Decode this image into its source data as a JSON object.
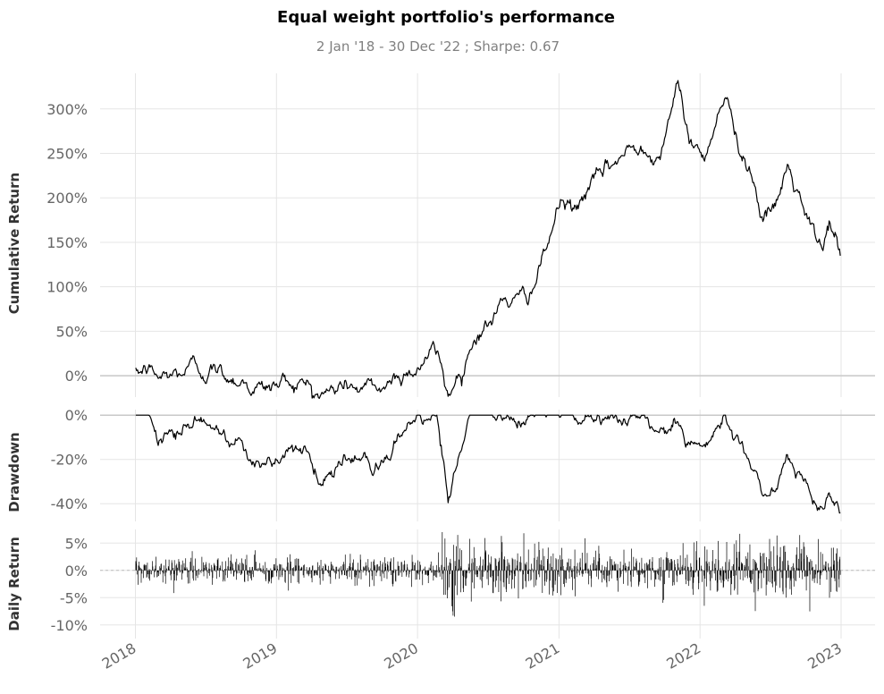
{
  "title": "Equal weight portfolio's performance",
  "subtitle": "2 Jan '18 - 30 Dec '22 ;  Sharpe: 0.67",
  "chart_data": [
    {
      "type": "line",
      "name": "cumulative",
      "ylabel": "Cumulative Return",
      "ylim": [
        -30,
        340
      ],
      "yticks": [
        0,
        50,
        100,
        150,
        200,
        250,
        300
      ],
      "ytick_labels": [
        "0%",
        "50%",
        "100%",
        "150%",
        "200%",
        "250%",
        "300%"
      ],
      "grid": true,
      "x": [
        "2018-01-02",
        "2018-02-01",
        "2018-03-01",
        "2018-04-01",
        "2018-05-01",
        "2018-06-01",
        "2018-07-01",
        "2018-08-01",
        "2018-09-01",
        "2018-10-01",
        "2018-11-01",
        "2018-12-01",
        "2019-01-01",
        "2019-02-01",
        "2019-03-01",
        "2019-04-01",
        "2019-05-01",
        "2019-06-01",
        "2019-07-01",
        "2019-08-01",
        "2019-09-01",
        "2019-10-01",
        "2019-11-01",
        "2019-12-01",
        "2020-01-01",
        "2020-02-01",
        "2020-02-20",
        "2020-03-20",
        "2020-04-15",
        "2020-05-15",
        "2020-06-15",
        "2020-07-15",
        "2020-08-15",
        "2020-09-15",
        "2020-10-15",
        "2020-11-15",
        "2020-12-15",
        "2021-01-05",
        "2021-02-15",
        "2021-03-15",
        "2021-04-15",
        "2021-05-15",
        "2021-06-15",
        "2021-07-15",
        "2021-08-15",
        "2021-09-15",
        "2021-10-15",
        "2021-11-05",
        "2021-11-25",
        "2021-12-20",
        "2022-01-15",
        "2022-02-15",
        "2022-03-10",
        "2022-03-31",
        "2022-04-20",
        "2022-05-15",
        "2022-06-15",
        "2022-07-15",
        "2022-08-15",
        "2022-09-15",
        "2022-10-15",
        "2022-11-15",
        "2022-12-01",
        "2022-12-30"
      ],
      "values": [
        0,
        7,
        -3,
        0,
        4,
        12,
        6,
        5,
        0,
        -3,
        -12,
        -15,
        -10,
        -6,
        -7,
        -12,
        -22,
        -15,
        -8,
        -14,
        -16,
        -14,
        -3,
        5,
        10,
        25,
        25,
        -20,
        0,
        35,
        55,
        62,
        90,
        80,
        95,
        120,
        165,
        195,
        185,
        210,
        220,
        235,
        248,
        255,
        263,
        245,
        300,
        320,
        280,
        255,
        248,
        300,
        315,
        270,
        255,
        230,
        175,
        185,
        235,
        200,
        160,
        140,
        175,
        135
      ]
    },
    {
      "type": "area",
      "name": "drawdown",
      "ylabel": "Drawdown",
      "ylim": [
        -48,
        3
      ],
      "yticks": [
        0,
        -20,
        -40
      ],
      "ytick_labels": [
        "0%",
        "-20%",
        "-40%"
      ],
      "grid": true,
      "x": [
        "2018-01-02",
        "2018-02-01",
        "2018-03-01",
        "2018-04-01",
        "2018-05-01",
        "2018-06-01",
        "2018-07-01",
        "2018-08-01",
        "2018-09-01",
        "2018-10-01",
        "2018-11-01",
        "2018-12-01",
        "2019-01-01",
        "2019-02-01",
        "2019-03-01",
        "2019-04-01",
        "2019-05-01",
        "2019-06-01",
        "2019-07-01",
        "2019-08-01",
        "2019-09-01",
        "2019-10-01",
        "2019-11-01",
        "2019-12-01",
        "2020-01-01",
        "2020-02-01",
        "2020-02-20",
        "2020-03-20",
        "2020-04-15",
        "2020-05-15",
        "2020-06-15",
        "2020-07-15",
        "2020-08-15",
        "2020-09-15",
        "2020-10-15",
        "2020-11-15",
        "2020-12-15",
        "2021-01-05",
        "2021-02-15",
        "2021-03-15",
        "2021-04-15",
        "2021-05-15",
        "2021-06-15",
        "2021-07-15",
        "2021-08-15",
        "2021-09-15",
        "2021-10-15",
        "2021-11-05",
        "2021-11-25",
        "2021-12-20",
        "2022-01-15",
        "2022-02-15",
        "2022-03-10",
        "2022-03-31",
        "2022-04-20",
        "2022-05-15",
        "2022-06-15",
        "2022-07-15",
        "2022-08-15",
        "2022-09-15",
        "2022-10-15",
        "2022-11-15",
        "2022-12-01",
        "2022-12-30"
      ],
      "values": [
        0,
        0,
        -12,
        -9,
        -7,
        0,
        -6,
        -7,
        -10,
        -13,
        -21,
        -24,
        -20,
        -16,
        -17,
        -21,
        -31,
        -24,
        -18,
        -23,
        -25,
        -23,
        -14,
        -7,
        -3,
        0,
        0,
        -41,
        -25,
        0,
        0,
        0,
        0,
        -4,
        0,
        0,
        0,
        0,
        -4,
        0,
        0,
        0,
        0,
        0,
        0,
        -5,
        0,
        0,
        -10,
        -18,
        -20,
        -7,
        0,
        -11,
        -15,
        -22,
        -35,
        -32,
        -20,
        -28,
        -37,
        -42,
        -35,
        -44
      ]
    },
    {
      "type": "bar",
      "name": "daily",
      "ylabel": "Daily Return",
      "ylim": [
        -12.5,
        7.5
      ],
      "yticks": [
        5,
        0,
        -5,
        -10
      ],
      "ytick_labels": [
        "5%",
        "0%",
        "-5%",
        "-10%"
      ],
      "grid": true,
      "x_start": "2018-01-02",
      "x_end": "2022-12-30",
      "volatility_regimes": [
        {
          "start": "2018-01-02",
          "end": "2020-02-20",
          "sigma": 1.4
        },
        {
          "start": "2020-02-20",
          "end": "2020-05-01",
          "sigma": 4.2
        },
        {
          "start": "2020-05-01",
          "end": "2021-01-01",
          "sigma": 2.3
        },
        {
          "start": "2021-01-01",
          "end": "2022-01-01",
          "sigma": 2.0
        },
        {
          "start": "2022-01-01",
          "end": "2022-12-30",
          "sigma": 2.6
        }
      ],
      "min": -12,
      "max": 7
    }
  ],
  "xticks": [
    "2018-01-01",
    "2019-01-01",
    "2020-01-01",
    "2021-01-01",
    "2022-01-01",
    "2023-01-01"
  ],
  "xtick_labels": [
    "2018",
    "2019",
    "2020",
    "2021",
    "2022",
    "2023"
  ]
}
